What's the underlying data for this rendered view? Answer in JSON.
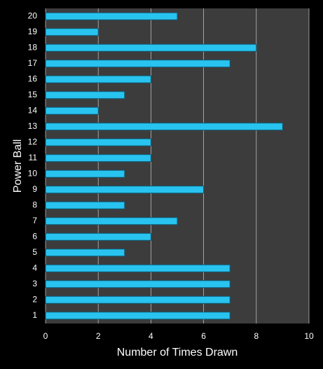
{
  "chart_data": {
    "type": "bar",
    "orientation": "horizontal",
    "x_label": "Number of Times Drawn",
    "y_label": "Power Ball",
    "categories": [
      "1",
      "2",
      "3",
      "4",
      "5",
      "6",
      "7",
      "8",
      "9",
      "10",
      "11",
      "12",
      "13",
      "14",
      "15",
      "16",
      "17",
      "18",
      "19",
      "20"
    ],
    "values": [
      7,
      7,
      7,
      7,
      3,
      4,
      5,
      3,
      6,
      3,
      4,
      4,
      9,
      2,
      3,
      4,
      7,
      8,
      2,
      5
    ],
    "color": "#29c3f0",
    "xlim": [
      0,
      10
    ],
    "xticks": [
      0,
      2,
      4,
      6,
      8,
      10
    ],
    "grid": true
  }
}
